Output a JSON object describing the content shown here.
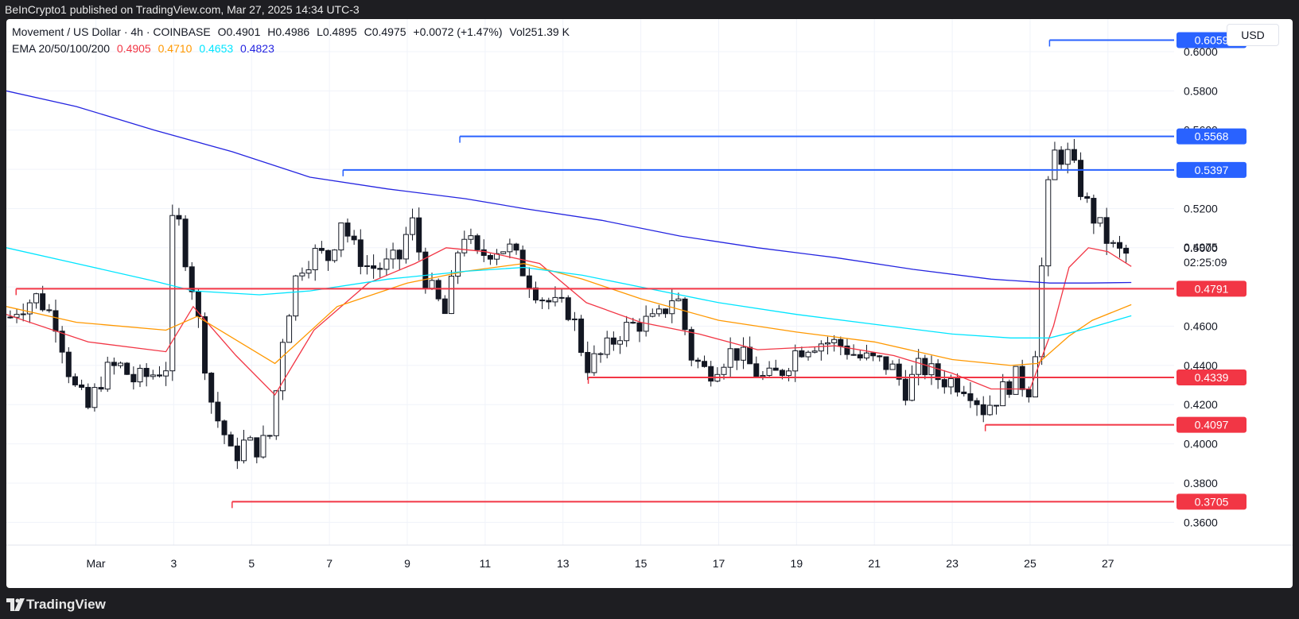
{
  "header": {
    "publisher_line": "BeInCrypto1 published on TradingView.com, Mar 27, 2025 14:34 UTC-3"
  },
  "legend": {
    "symbol": "Movement / US Dollar · 4h · COINBASE",
    "open": "O0.4901",
    "high": "H0.4986",
    "low": "L0.4895",
    "close": "C0.4975",
    "change": "+0.0072 (+1.47%)",
    "volume": "Vol251.39 K",
    "ema_label": "EMA 20/50/100/200",
    "ema_values": [
      {
        "value": "0.4905",
        "color": "#f23645"
      },
      {
        "value": "0.4710",
        "color": "#ff9800"
      },
      {
        "value": "0.4653",
        "color": "#00e5ff"
      },
      {
        "value": "0.4823",
        "color": "#2424e0"
      }
    ]
  },
  "currency_button": "USD",
  "footer": {
    "brand": "TradingView"
  },
  "chart_data": {
    "type": "candlestick",
    "timeframe": "4h",
    "ylim": [
      0.35,
      0.615
    ],
    "y_ticks": [
      "0.3600",
      "0.3800",
      "0.4000",
      "0.4200",
      "0.4400",
      "0.4600",
      "0.4800",
      "0.5000",
      "0.5200",
      "0.5400",
      "0.5600",
      "0.5800",
      "0.6000"
    ],
    "x_ticks": [
      {
        "label": "Mar",
        "day": 1
      },
      {
        "label": "3",
        "day": 3
      },
      {
        "label": "5",
        "day": 5
      },
      {
        "label": "7",
        "day": 7
      },
      {
        "label": "9",
        "day": 9
      },
      {
        "label": "11",
        "day": 11
      },
      {
        "label": "13",
        "day": 13
      },
      {
        "label": "15",
        "day": 15
      },
      {
        "label": "17",
        "day": 17
      },
      {
        "label": "19",
        "day": 19
      },
      {
        "label": "21",
        "day": 21
      },
      {
        "label": "23",
        "day": 23
      },
      {
        "label": "25",
        "day": 25
      },
      {
        "label": "27",
        "day": 27
      }
    ],
    "x_range_days": [
      -1.3,
      28.7
    ],
    "resistance_levels": [
      {
        "value": 0.6059,
        "label": "0.6059",
        "start_day": 25.5
      },
      {
        "value": 0.5568,
        "label": "0.5568",
        "start_day": 10.35
      },
      {
        "value": 0.5397,
        "label": "0.5397",
        "start_day": 7.35
      }
    ],
    "support_levels": [
      {
        "value": 0.4791,
        "label": "0.4791",
        "start_day": -1.05
      },
      {
        "value": 0.4339,
        "label": "0.4339",
        "start_day": 13.65
      },
      {
        "value": 0.4097,
        "label": "0.4097",
        "start_day": 23.85
      },
      {
        "value": 0.3705,
        "label": "0.3705",
        "start_day": 4.5
      }
    ],
    "last_price": {
      "value": 0.4975,
      "label": "0.4975",
      "countdown": "02:25:09"
    },
    "close_path": [
      [
        -1.3,
        0.462
      ],
      [
        -1.0,
        0.47
      ],
      [
        -0.5,
        0.475
      ],
      [
        0,
        0.462
      ],
      [
        0.4,
        0.43
      ],
      [
        0.8,
        0.418
      ],
      [
        1.2,
        0.436
      ],
      [
        1.6,
        0.44
      ],
      [
        2.0,
        0.432
      ],
      [
        2.5,
        0.436
      ],
      [
        2.8,
        0.44
      ],
      [
        3.0,
        0.525
      ],
      [
        3.2,
        0.505
      ],
      [
        3.5,
        0.478
      ],
      [
        4.0,
        0.418
      ],
      [
        4.3,
        0.405
      ],
      [
        4.5,
        0.392
      ],
      [
        4.8,
        0.4
      ],
      [
        5.2,
        0.398
      ],
      [
        5.5,
        0.405
      ],
      [
        5.8,
        0.455
      ],
      [
        6.2,
        0.49
      ],
      [
        6.6,
        0.497
      ],
      [
        7.0,
        0.495
      ],
      [
        7.3,
        0.515
      ],
      [
        7.6,
        0.5
      ],
      [
        8.0,
        0.49
      ],
      [
        8.4,
        0.49
      ],
      [
        8.8,
        0.495
      ],
      [
        9.1,
        0.515
      ],
      [
        9.5,
        0.482
      ],
      [
        10.0,
        0.465
      ],
      [
        10.4,
        0.51
      ],
      [
        10.8,
        0.495
      ],
      [
        11.2,
        0.5
      ],
      [
        11.6,
        0.5
      ],
      [
        12.0,
        0.488
      ],
      [
        12.4,
        0.476
      ],
      [
        12.8,
        0.47
      ],
      [
        13.2,
        0.468
      ],
      [
        13.6,
        0.44
      ],
      [
        14.0,
        0.445
      ],
      [
        14.5,
        0.458
      ],
      [
        15.0,
        0.462
      ],
      [
        15.4,
        0.462
      ],
      [
        15.9,
        0.478
      ],
      [
        16.3,
        0.445
      ],
      [
        16.7,
        0.436
      ],
      [
        17.0,
        0.442
      ],
      [
        17.4,
        0.448
      ],
      [
        17.8,
        0.44
      ],
      [
        18.2,
        0.432
      ],
      [
        18.6,
        0.437
      ],
      [
        19.0,
        0.448
      ],
      [
        19.4,
        0.452
      ],
      [
        19.8,
        0.452
      ],
      [
        20.2,
        0.45
      ],
      [
        20.6,
        0.444
      ],
      [
        21.0,
        0.442
      ],
      [
        21.4,
        0.44
      ],
      [
        21.8,
        0.428
      ],
      [
        22.2,
        0.44
      ],
      [
        22.6,
        0.434
      ],
      [
        23.0,
        0.432
      ],
      [
        23.4,
        0.43
      ],
      [
        23.8,
        0.418
      ],
      [
        24.2,
        0.425
      ],
      [
        24.6,
        0.434
      ],
      [
        25.0,
        0.428
      ],
      [
        25.2,
        0.46
      ],
      [
        25.4,
        0.52
      ],
      [
        25.6,
        0.548
      ],
      [
        25.8,
        0.547
      ],
      [
        26.0,
        0.547
      ],
      [
        26.2,
        0.535
      ],
      [
        26.5,
        0.52
      ],
      [
        26.8,
        0.51
      ],
      [
        27.1,
        0.5
      ],
      [
        27.4,
        0.496
      ],
      [
        27.6,
        0.4975
      ]
    ],
    "ema_series": [
      {
        "name": "EMA 20",
        "color": "#f23645",
        "points": [
          [
            -1.3,
            0.466
          ],
          [
            0.8,
            0.452
          ],
          [
            2.8,
            0.447
          ],
          [
            3.5,
            0.47
          ],
          [
            4.6,
            0.445
          ],
          [
            5.6,
            0.425
          ],
          [
            6.6,
            0.458
          ],
          [
            8,
            0.482
          ],
          [
            9.2,
            0.492
          ],
          [
            10,
            0.5
          ],
          [
            11,
            0.498
          ],
          [
            12.4,
            0.492
          ],
          [
            13.6,
            0.472
          ],
          [
            15,
            0.462
          ],
          [
            16.5,
            0.456
          ],
          [
            18,
            0.448
          ],
          [
            20,
            0.45
          ],
          [
            21.5,
            0.445
          ],
          [
            23,
            0.436
          ],
          [
            24,
            0.428
          ],
          [
            25,
            0.428
          ],
          [
            25.6,
            0.46
          ],
          [
            26,
            0.49
          ],
          [
            26.5,
            0.5
          ],
          [
            27,
            0.498
          ],
          [
            27.6,
            0.4905
          ]
        ]
      },
      {
        "name": "EMA 50",
        "color": "#ff9800",
        "points": [
          [
            -1.3,
            0.47
          ],
          [
            0.5,
            0.462
          ],
          [
            2.8,
            0.458
          ],
          [
            3.6,
            0.465
          ],
          [
            5.6,
            0.441
          ],
          [
            7.2,
            0.47
          ],
          [
            9,
            0.482
          ],
          [
            10.5,
            0.488
          ],
          [
            12,
            0.492
          ],
          [
            13.5,
            0.484
          ],
          [
            15,
            0.474
          ],
          [
            17,
            0.463
          ],
          [
            19,
            0.457
          ],
          [
            21,
            0.452
          ],
          [
            23,
            0.443
          ],
          [
            24.5,
            0.44
          ],
          [
            25.2,
            0.441
          ],
          [
            26,
            0.455
          ],
          [
            26.6,
            0.463
          ],
          [
            27.6,
            0.471
          ]
        ]
      },
      {
        "name": "EMA 100",
        "color": "#00e5ff",
        "points": [
          [
            -1.3,
            0.5
          ],
          [
            0.5,
            0.492
          ],
          [
            2.5,
            0.483
          ],
          [
            3.5,
            0.478
          ],
          [
            5.2,
            0.476
          ],
          [
            6.5,
            0.478
          ],
          [
            8.5,
            0.484
          ],
          [
            10.5,
            0.488
          ],
          [
            12,
            0.49
          ],
          [
            13.5,
            0.486
          ],
          [
            15,
            0.48
          ],
          [
            17,
            0.472
          ],
          [
            19,
            0.466
          ],
          [
            21,
            0.461
          ],
          [
            23,
            0.456
          ],
          [
            24.5,
            0.454
          ],
          [
            25.5,
            0.454
          ],
          [
            26.5,
            0.459
          ],
          [
            27.6,
            0.4653
          ]
        ]
      },
      {
        "name": "EMA 200",
        "color": "#2424e0",
        "points": [
          [
            -1.3,
            0.58
          ],
          [
            0.5,
            0.572
          ],
          [
            2.5,
            0.56
          ],
          [
            4.5,
            0.549
          ],
          [
            6.5,
            0.536
          ],
          [
            8.5,
            0.53
          ],
          [
            10.5,
            0.525
          ],
          [
            12,
            0.52
          ],
          [
            14,
            0.514
          ],
          [
            16,
            0.506
          ],
          [
            18,
            0.5
          ],
          [
            20,
            0.495
          ],
          [
            22,
            0.489
          ],
          [
            24,
            0.484
          ],
          [
            25.5,
            0.482
          ],
          [
            26.5,
            0.482
          ],
          [
            27.6,
            0.4823
          ]
        ]
      }
    ]
  }
}
